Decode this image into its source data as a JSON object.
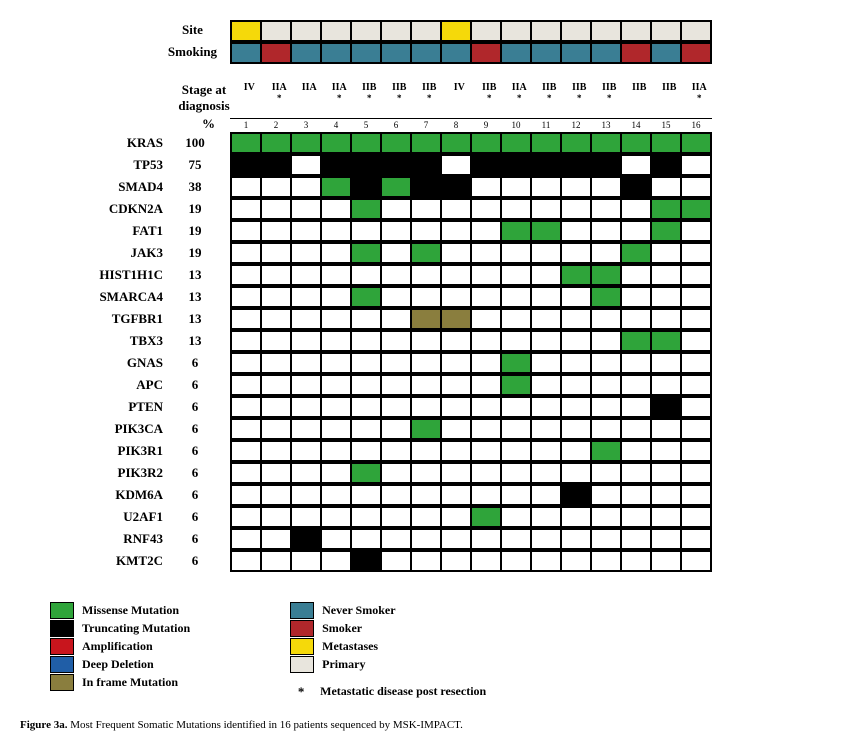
{
  "colors": {
    "missense": "#2fa43a",
    "truncating": "#000000",
    "amplification": "#c8151d",
    "deep_deletion": "#205ea7",
    "in_frame": "#8a7e3e",
    "never_smoker": "#3a7e94",
    "smoker": "#b0272b",
    "metastases": "#f5d90a",
    "primary": "#e8e5dd",
    "empty": "#ffffff",
    "border": "#000000",
    "grid_border_width": 2
  },
  "header": {
    "site_label": "Site",
    "smoking_label": "Smoking",
    "stage_label_line1": "Stage at",
    "stage_label_line2": "diagnosis",
    "percent_label": "%"
  },
  "n_patients": 16,
  "site_row": [
    "metastases",
    "primary",
    "primary",
    "primary",
    "primary",
    "primary",
    "primary",
    "metastases",
    "primary",
    "primary",
    "primary",
    "primary",
    "primary",
    "primary",
    "primary",
    "primary"
  ],
  "smoking_row": [
    "never_smoker",
    "smoker",
    "never_smoker",
    "never_smoker",
    "never_smoker",
    "never_smoker",
    "never_smoker",
    "never_smoker",
    "smoker",
    "never_smoker",
    "never_smoker",
    "never_smoker",
    "never_smoker",
    "smoker",
    "never_smoker",
    "smoker"
  ],
  "stages": [
    "IV",
    "IIA",
    "IIA",
    "IIA",
    "IIB",
    "IIB",
    "IIB",
    "IV",
    "IIB",
    "IIA",
    "IIB",
    "IIB",
    "IIB",
    "IIB",
    "IIB",
    "IIA"
  ],
  "stage_star": [
    false,
    true,
    false,
    true,
    true,
    true,
    true,
    false,
    true,
    true,
    true,
    true,
    true,
    false,
    false,
    true
  ],
  "patient_ids": [
    "1",
    "2",
    "3",
    "4",
    "5",
    "6",
    "7",
    "8",
    "9",
    "10",
    "11",
    "12",
    "13",
    "14",
    "15",
    "16"
  ],
  "genes": [
    {
      "name": "KRAS",
      "pct": 100,
      "cells": [
        "missense",
        "missense",
        "missense",
        "missense",
        "missense",
        "missense",
        "missense",
        "missense",
        "missense",
        "missense",
        "missense",
        "missense",
        "missense",
        "missense",
        "missense",
        "missense"
      ]
    },
    {
      "name": "TP53",
      "pct": 75,
      "cells": [
        "truncating",
        "truncating",
        "",
        "truncating",
        "truncating",
        "truncating",
        "truncating",
        "",
        "truncating",
        "truncating",
        "truncating",
        "truncating",
        "truncating",
        "",
        "truncating",
        ""
      ]
    },
    {
      "name": "SMAD4",
      "pct": 38,
      "cells": [
        "",
        "",
        "",
        "missense",
        "truncating",
        "missense",
        "truncating",
        "truncating",
        "",
        "",
        "",
        "",
        "",
        "truncating",
        "",
        ""
      ]
    },
    {
      "name": "CDKN2A",
      "pct": 19,
      "cells": [
        "",
        "",
        "",
        "",
        "missense",
        "",
        "",
        "",
        "",
        "",
        "",
        "",
        "",
        "",
        "missense",
        "missense"
      ]
    },
    {
      "name": "FAT1",
      "pct": 19,
      "cells": [
        "",
        "",
        "",
        "",
        "",
        "",
        "",
        "",
        "",
        "missense",
        "missense",
        "",
        "",
        "",
        "missense",
        ""
      ]
    },
    {
      "name": "JAK3",
      "pct": 19,
      "cells": [
        "",
        "",
        "",
        "",
        "missense",
        "",
        "missense",
        "",
        "",
        "",
        "",
        "",
        "",
        "missense",
        "",
        ""
      ]
    },
    {
      "name": "HIST1H1C",
      "pct": 13,
      "cells": [
        "",
        "",
        "",
        "",
        "",
        "",
        "",
        "",
        "",
        "",
        "",
        "missense",
        "missense",
        "",
        "",
        ""
      ]
    },
    {
      "name": "SMARCA4",
      "pct": 13,
      "cells": [
        "",
        "",
        "",
        "",
        "missense",
        "",
        "",
        "",
        "",
        "",
        "",
        "",
        "missense",
        "",
        "",
        ""
      ]
    },
    {
      "name": "TGFBR1",
      "pct": 13,
      "cells": [
        "",
        "",
        "",
        "",
        "",
        "",
        "in_frame",
        "in_frame",
        "",
        "",
        "",
        "",
        "",
        "",
        "",
        ""
      ]
    },
    {
      "name": "TBX3",
      "pct": 13,
      "cells": [
        "",
        "",
        "",
        "",
        "",
        "",
        "",
        "",
        "",
        "",
        "",
        "",
        "",
        "missense",
        "missense",
        ""
      ]
    },
    {
      "name": "GNAS",
      "pct": 6,
      "cells": [
        "",
        "",
        "",
        "",
        "",
        "",
        "",
        "",
        "",
        "missense",
        "",
        "",
        "",
        "",
        "",
        ""
      ]
    },
    {
      "name": "APC",
      "pct": 6,
      "cells": [
        "",
        "",
        "",
        "",
        "",
        "",
        "",
        "",
        "",
        "missense",
        "",
        "",
        "",
        "",
        "",
        ""
      ]
    },
    {
      "name": "PTEN",
      "pct": 6,
      "cells": [
        "",
        "",
        "",
        "",
        "",
        "",
        "",
        "",
        "",
        "",
        "",
        "",
        "",
        "",
        "truncating",
        ""
      ]
    },
    {
      "name": "PIK3CA",
      "pct": 6,
      "cells": [
        "",
        "",
        "",
        "",
        "",
        "",
        "missense",
        "",
        "",
        "",
        "",
        "",
        "",
        "",
        "",
        ""
      ]
    },
    {
      "name": "PIK3R1",
      "pct": 6,
      "cells": [
        "",
        "",
        "",
        "",
        "",
        "",
        "",
        "",
        "",
        "",
        "",
        "",
        "missense",
        "",
        "",
        ""
      ]
    },
    {
      "name": "PIK3R2",
      "pct": 6,
      "cells": [
        "",
        "",
        "",
        "",
        "missense",
        "",
        "",
        "",
        "",
        "",
        "",
        "",
        "",
        "",
        "",
        ""
      ]
    },
    {
      "name": "KDM6A",
      "pct": 6,
      "cells": [
        "",
        "",
        "",
        "",
        "",
        "",
        "",
        "",
        "",
        "",
        "",
        "truncating",
        "",
        "",
        "",
        ""
      ]
    },
    {
      "name": "U2AF1",
      "pct": 6,
      "cells": [
        "",
        "",
        "",
        "",
        "",
        "",
        "",
        "",
        "missense",
        "",
        "",
        "",
        "",
        "",
        "",
        ""
      ]
    },
    {
      "name": "RNF43",
      "pct": 6,
      "cells": [
        "",
        "",
        "truncating",
        "",
        "",
        "",
        "",
        "",
        "",
        "",
        "",
        "",
        "",
        "",
        "",
        ""
      ]
    },
    {
      "name": "KMT2C",
      "pct": 6,
      "cells": [
        "",
        "",
        "",
        "",
        "truncating",
        "",
        "",
        "",
        "",
        "",
        "",
        "",
        "",
        "",
        "",
        ""
      ]
    }
  ],
  "legend_left": [
    {
      "key": "missense",
      "label": "Missense Mutation"
    },
    {
      "key": "truncating",
      "label": "Truncating Mutation"
    },
    {
      "key": "amplification",
      "label": "Amplification"
    },
    {
      "key": "deep_deletion",
      "label": "Deep Deletion"
    },
    {
      "key": "in_frame",
      "label": "In frame Mutation"
    }
  ],
  "legend_right": [
    {
      "key": "never_smoker",
      "label": "Never Smoker"
    },
    {
      "key": "smoker",
      "label": "Smoker"
    },
    {
      "key": "metastases",
      "label": "Metastases"
    },
    {
      "key": "primary",
      "label": "Primary"
    }
  ],
  "legend_star_label": "Metastatic disease post resection",
  "caption_bold": "Figure 3a.",
  "caption_rest": " Most Frequent Somatic Mutations identified in 16 patients sequenced by MSK-IMPACT."
}
